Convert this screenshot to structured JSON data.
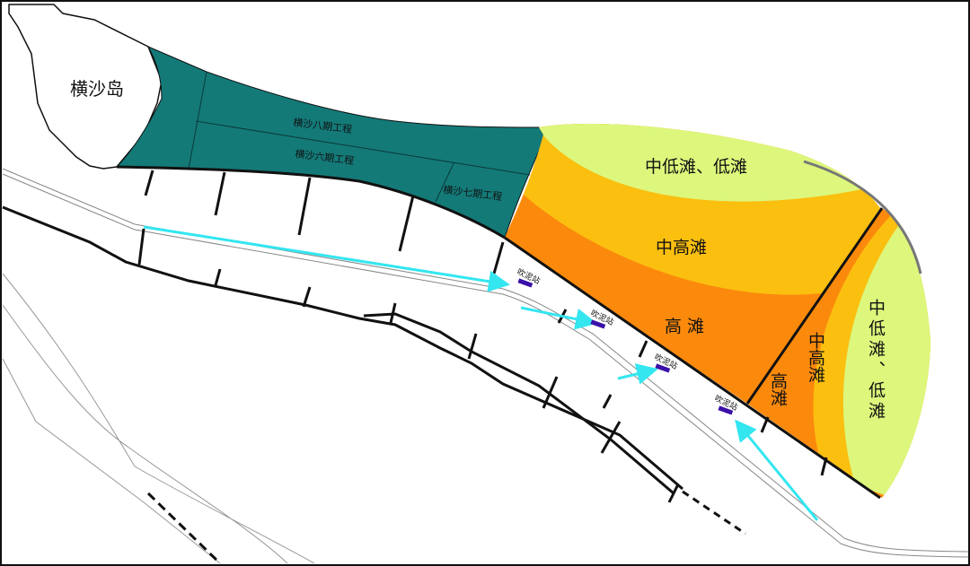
{
  "map": {
    "island_label": "横沙岛",
    "projects": [
      {
        "label": "横沙八期工程"
      },
      {
        "label": "横沙六期工程"
      },
      {
        "label": "横沙七期工程"
      }
    ],
    "zones": {
      "left_low": "中低滩、低滩",
      "left_mid_high": "中高滩",
      "left_high": "高 滩",
      "right_high": "高滩",
      "right_mid_high": "中高滩",
      "right_low": "中低滩、低滩"
    },
    "stations": [
      "吹泥站",
      "吹泥站",
      "吹泥站",
      "吹泥站"
    ],
    "colors": {
      "project_area": "#137a78",
      "high_shoal": "#fb8a0c",
      "mid_high_shoal": "#fbbf10",
      "low_shoal": "#dcf77c",
      "arrow": "#33e6f0",
      "station": "#3a10a8"
    }
  }
}
